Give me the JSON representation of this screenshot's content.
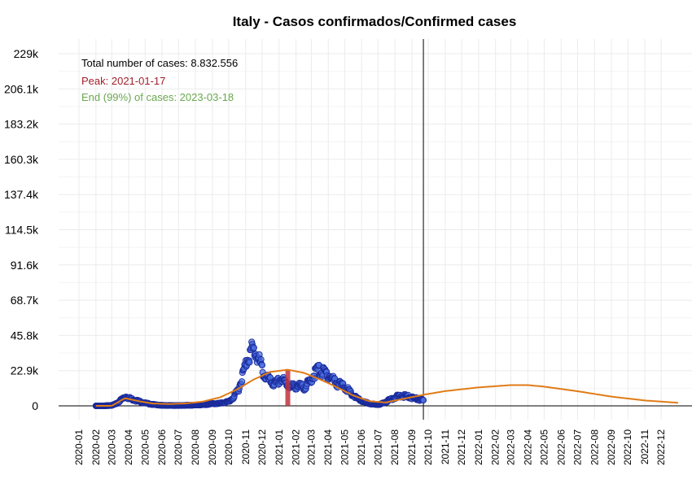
{
  "chart_data": {
    "type": "scatter",
    "title": "Italy - Casos confirmados/Confirmed cases",
    "xlabel": "",
    "ylabel": "",
    "y_ticks": [
      "0",
      "22.9k",
      "45.8k",
      "68.7k",
      "91.6k",
      "114.5k",
      "137.4k",
      "160.3k",
      "183.2k",
      "206.1k",
      "229k"
    ],
    "y_tick_values": [
      0,
      22900,
      45800,
      68700,
      91600,
      114500,
      137400,
      160300,
      183200,
      206100,
      229000
    ],
    "ylim": [
      0,
      229000
    ],
    "x_ticks": [
      "2020-01",
      "2020-02",
      "2020-03",
      "2020-04",
      "2020-05",
      "2020-06",
      "2020-07",
      "2020-08",
      "2020-09",
      "2020-10",
      "2020-11",
      "2020-12",
      "2021-01",
      "2021-02",
      "2021-03",
      "2021-04",
      "2021-05",
      "2021-06",
      "2021-07",
      "2021-08",
      "2021-09",
      "2021-10",
      "2021-11",
      "2021-12",
      "2022-01",
      "2022-02",
      "2022-03",
      "2022-04",
      "2022-05",
      "2022-06",
      "2022-07",
      "2022-08",
      "2022-09",
      "2022-10",
      "2022-11",
      "2022-12"
    ],
    "xlim": [
      "2020-01-01",
      "2023-01-01"
    ],
    "grid": true,
    "annotations": {
      "total": "Total number of cases: 8.832.556",
      "peak": "Peak: 2021-01-17",
      "end": "End (99%) of cases: 2023-03-18"
    },
    "peak_date": "2021-01-17",
    "current_date": "2021-09-22",
    "series": [
      {
        "kind": "points",
        "x": [
          "2020-02-01",
          "2020-02-15",
          "2020-03-01",
          "2020-03-10",
          "2020-03-20",
          "2020-03-27",
          "2020-04-05",
          "2020-04-15",
          "2020-05-01",
          "2020-05-15",
          "2020-06-01",
          "2020-07-01",
          "2020-08-01",
          "2020-08-20",
          "2020-09-01",
          "2020-09-15",
          "2020-10-01",
          "2020-10-10",
          "2020-10-20",
          "2020-10-28",
          "2020-11-05",
          "2020-11-13",
          "2020-11-20",
          "2020-11-28",
          "2020-12-05",
          "2020-12-15",
          "2020-12-25",
          "2021-01-05",
          "2021-01-15",
          "2021-01-25",
          "2021-02-05",
          "2021-02-15",
          "2021-02-25",
          "2021-03-05",
          "2021-03-12",
          "2021-03-20",
          "2021-03-28",
          "2021-04-05",
          "2021-04-15",
          "2021-04-25",
          "2021-05-05",
          "2021-05-15",
          "2021-05-25",
          "2021-06-05",
          "2021-06-15",
          "2021-06-25",
          "2021-07-05",
          "2021-07-15",
          "2021-07-25",
          "2021-08-05",
          "2021-08-15",
          "2021-08-25",
          "2021-09-05",
          "2021-09-15",
          "2021-09-22"
        ],
        "y": [
          0,
          0,
          300,
          1500,
          4500,
          6000,
          4500,
          3500,
          1800,
          900,
          300,
          200,
          500,
          800,
          1400,
          1600,
          2800,
          5500,
          12000,
          22000,
          32000,
          36500,
          34000,
          27000,
          20000,
          16000,
          14000,
          17500,
          14000,
          12500,
          13000,
          12000,
          15000,
          20000,
          23500,
          22000,
          21000,
          19000,
          15000,
          13500,
          11000,
          7000,
          4500,
          2500,
          1500,
          900,
          1000,
          2500,
          4500,
          6000,
          6500,
          6000,
          5000,
          4000,
          3500
        ]
      },
      {
        "kind": "fit",
        "x": [
          "2020-02-01",
          "2020-03-01",
          "2020-03-25",
          "2020-04-20",
          "2020-05-15",
          "2020-06-15",
          "2020-07-15",
          "2020-08-15",
          "2020-09-15",
          "2020-10-15",
          "2020-11-15",
          "2020-12-15",
          "2021-01-17",
          "2021-02-15",
          "2021-03-15",
          "2021-04-15",
          "2021-05-15",
          "2021-06-15",
          "2021-07-15",
          "2021-08-15",
          "2021-09-22",
          "2021-11-01",
          "2022-01-01",
          "2022-03-01",
          "2022-04-01",
          "2022-05-01",
          "2022-07-01",
          "2022-09-01",
          "2022-11-01",
          "2023-01-01"
        ],
        "y": [
          0,
          0,
          5000,
          3000,
          1500,
          1200,
          1600,
          2800,
          5500,
          10500,
          17000,
          22000,
          23500,
          21500,
          17500,
          12500,
          7000,
          3000,
          2200,
          4500,
          7200,
          9600,
          12000,
          13500,
          13500,
          12500,
          9500,
          6000,
          3500,
          2000
        ]
      }
    ]
  }
}
